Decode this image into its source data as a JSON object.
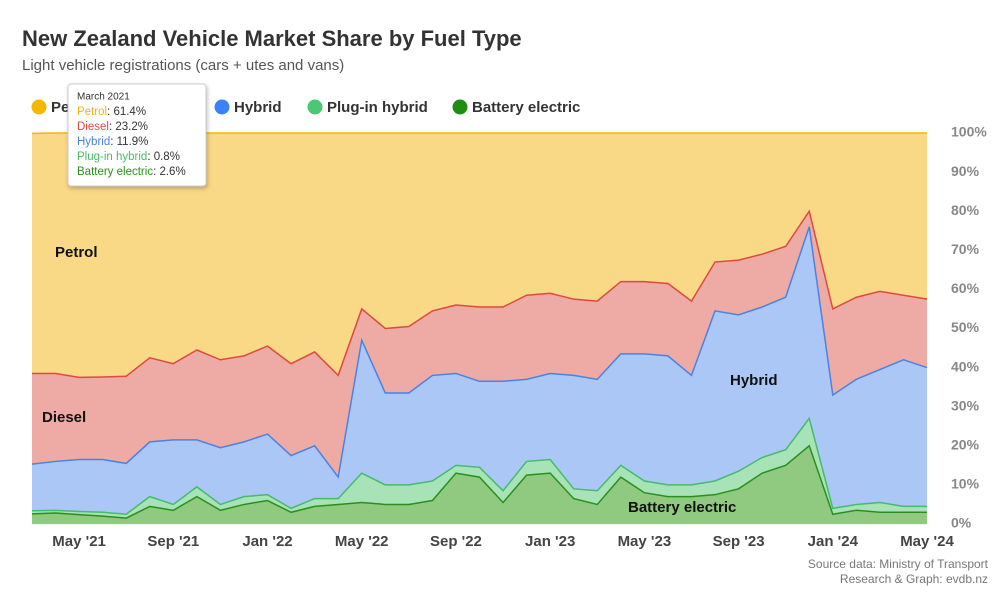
{
  "chart_data": {
    "type": "stacked-area",
    "title": "New Zealand Vehicle Market Share by Fuel Type",
    "subtitle": "Light vehicle registrations (cars + utes and vans)",
    "source": [
      "Source data: Ministry of Transport",
      "Research & Graph: evdb.nz"
    ],
    "categories": [
      null,
      null,
      "May '21",
      null,
      null,
      null,
      "Sep '21",
      null,
      null,
      null,
      "Jan '22",
      null,
      null,
      null,
      "May '22",
      null,
      null,
      null,
      "Sep '22",
      null,
      null,
      null,
      "Jan '23",
      null,
      null,
      null,
      "May '23",
      null,
      null,
      null,
      "Sep '23",
      null,
      null,
      null,
      "Jan '24",
      null,
      null,
      null,
      "May '24"
    ],
    "series": [
      {
        "name": "Petrol",
        "color": "#f2b705",
        "fill": "#f9d886",
        "dot": "#f5b800",
        "values": [
          61.4,
          61.5,
          62.5,
          62.4,
          62.2,
          57.5,
          59.0,
          55.5,
          58.0,
          57.0,
          54.5,
          59.0,
          56.0,
          62.0,
          45.0,
          50.0,
          49.5,
          45.5,
          44.0,
          44.5,
          44.5,
          41.5,
          41.0,
          42.5,
          43.0,
          38.0,
          38.0,
          38.5,
          43.0,
          33.0,
          32.5,
          31.0,
          29.0,
          20.0,
          45.0,
          42.0,
          40.5,
          41.5,
          42.5
        ]
      },
      {
        "name": "Diesel",
        "color": "#dc4b40",
        "fill": "#eeaaa5",
        "dot": "#e2463a",
        "values": [
          23.2,
          22.5,
          21.0,
          21.1,
          22.3,
          21.5,
          19.5,
          23.0,
          22.5,
          22.0,
          22.5,
          23.5,
          24.0,
          26.0,
          8.0,
          16.5,
          17.0,
          16.5,
          17.5,
          19.0,
          19.0,
          21.5,
          20.5,
          19.5,
          20.0,
          18.5,
          18.5,
          18.5,
          19.0,
          12.5,
          14.0,
          13.5,
          13.0,
          4.0,
          22.0,
          21.0,
          20.0,
          16.5,
          17.5
        ]
      },
      {
        "name": "Hybrid",
        "color": "#4a83e0",
        "fill": "#abc7f6",
        "dot": "#3b82f6",
        "values": [
          11.9,
          12.5,
          13.3,
          13.5,
          13.0,
          14.0,
          16.5,
          12.0,
          14.5,
          14.0,
          15.5,
          13.5,
          13.5,
          5.5,
          34.0,
          23.5,
          23.5,
          27.0,
          23.5,
          22.0,
          28.0,
          21.0,
          22.0,
          29.0,
          28.5,
          28.5,
          32.5,
          33.0,
          28.0,
          43.5,
          40.0,
          38.5,
          39.0,
          49.0,
          29.0,
          32.0,
          34.0,
          37.5,
          35.5
        ]
      },
      {
        "name": "Plug-in hybrid",
        "color": "#45bb6c",
        "fill": "#a8e3b8",
        "dot": "#4cc774",
        "values": [
          0.8,
          0.7,
          0.8,
          1.0,
          1.0,
          2.5,
          1.5,
          2.5,
          1.5,
          2.0,
          1.5,
          1.0,
          2.0,
          1.5,
          7.5,
          5.0,
          5.0,
          5.0,
          2.0,
          2.5,
          3.0,
          3.5,
          3.5,
          2.5,
          3.5,
          3.0,
          3.0,
          3.0,
          3.0,
          3.5,
          4.5,
          4.0,
          4.0,
          7.0,
          1.5,
          1.5,
          2.5,
          1.5,
          1.5
        ]
      },
      {
        "name": "Battery electric",
        "color": "#2a901c",
        "fill": "#8fca80",
        "dot": "#1f8c12",
        "values": [
          2.6,
          2.8,
          2.4,
          2.0,
          1.5,
          4.5,
          3.5,
          7.0,
          3.5,
          5.0,
          6.0,
          3.0,
          4.5,
          5.0,
          5.5,
          5.0,
          5.0,
          6.0,
          13.0,
          12.0,
          5.5,
          12.5,
          13.0,
          6.5,
          5.0,
          12.0,
          8.0,
          7.0,
          7.0,
          7.5,
          9.0,
          13.0,
          15.0,
          20.0,
          2.5,
          3.5,
          3.0,
          3.0,
          3.0
        ]
      }
    ],
    "ylim": [
      0,
      100
    ],
    "yticks": [
      {
        "value": 0,
        "label": "0%"
      },
      {
        "value": 10,
        "label": "10%"
      },
      {
        "value": 20,
        "label": "20%"
      },
      {
        "value": 30,
        "label": "30%"
      },
      {
        "value": 40,
        "label": "40%"
      },
      {
        "value": 50,
        "label": "50%"
      },
      {
        "value": 60,
        "label": "60%"
      },
      {
        "value": 70,
        "label": "70%"
      },
      {
        "value": 80,
        "label": "80%"
      },
      {
        "value": 90,
        "label": "90%"
      },
      {
        "value": 100,
        "label": "100%"
      }
    ],
    "grid": true,
    "legend": "top",
    "tooltip": {
      "title": "March 2021",
      "index": 0,
      "value_labels": [
        "61.4%",
        "23.2%",
        "11.9%",
        "0.8%",
        "2.6%"
      ]
    }
  }
}
